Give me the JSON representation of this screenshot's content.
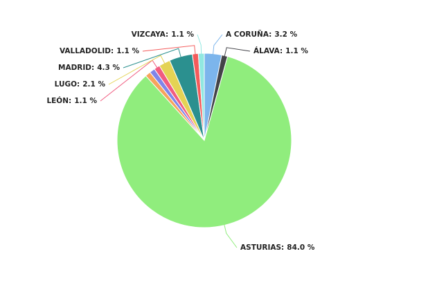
{
  "chart_data": {
    "type": "pie",
    "categories": [
      "A CORUÑA:",
      "ÁLAVA:",
      "ASTURIAS:",
      null,
      null,
      "LEÓN:",
      "LUGO:",
      "MADRID:",
      "VALLADOLID:",
      "VIZCAYA:"
    ],
    "values": [
      3.2,
      1.1,
      84.0,
      1.0,
      1.0,
      1.1,
      2.1,
      4.3,
      1.1,
      1.1
    ],
    "value_labels": [
      "3.2 %",
      "1.1 %",
      "84.0 %",
      null,
      null,
      "1.1 %",
      "2.1 %",
      "4.3 %",
      "1.1 %",
      "1.1 %"
    ],
    "colors": [
      "#7cb5ec",
      "#434348",
      "#90ed7d",
      "#f7a35c",
      "#8085e9",
      "#f15c80",
      "#e4d354",
      "#2b908f",
      "#f45b5b",
      "#91e8e1"
    ]
  }
}
